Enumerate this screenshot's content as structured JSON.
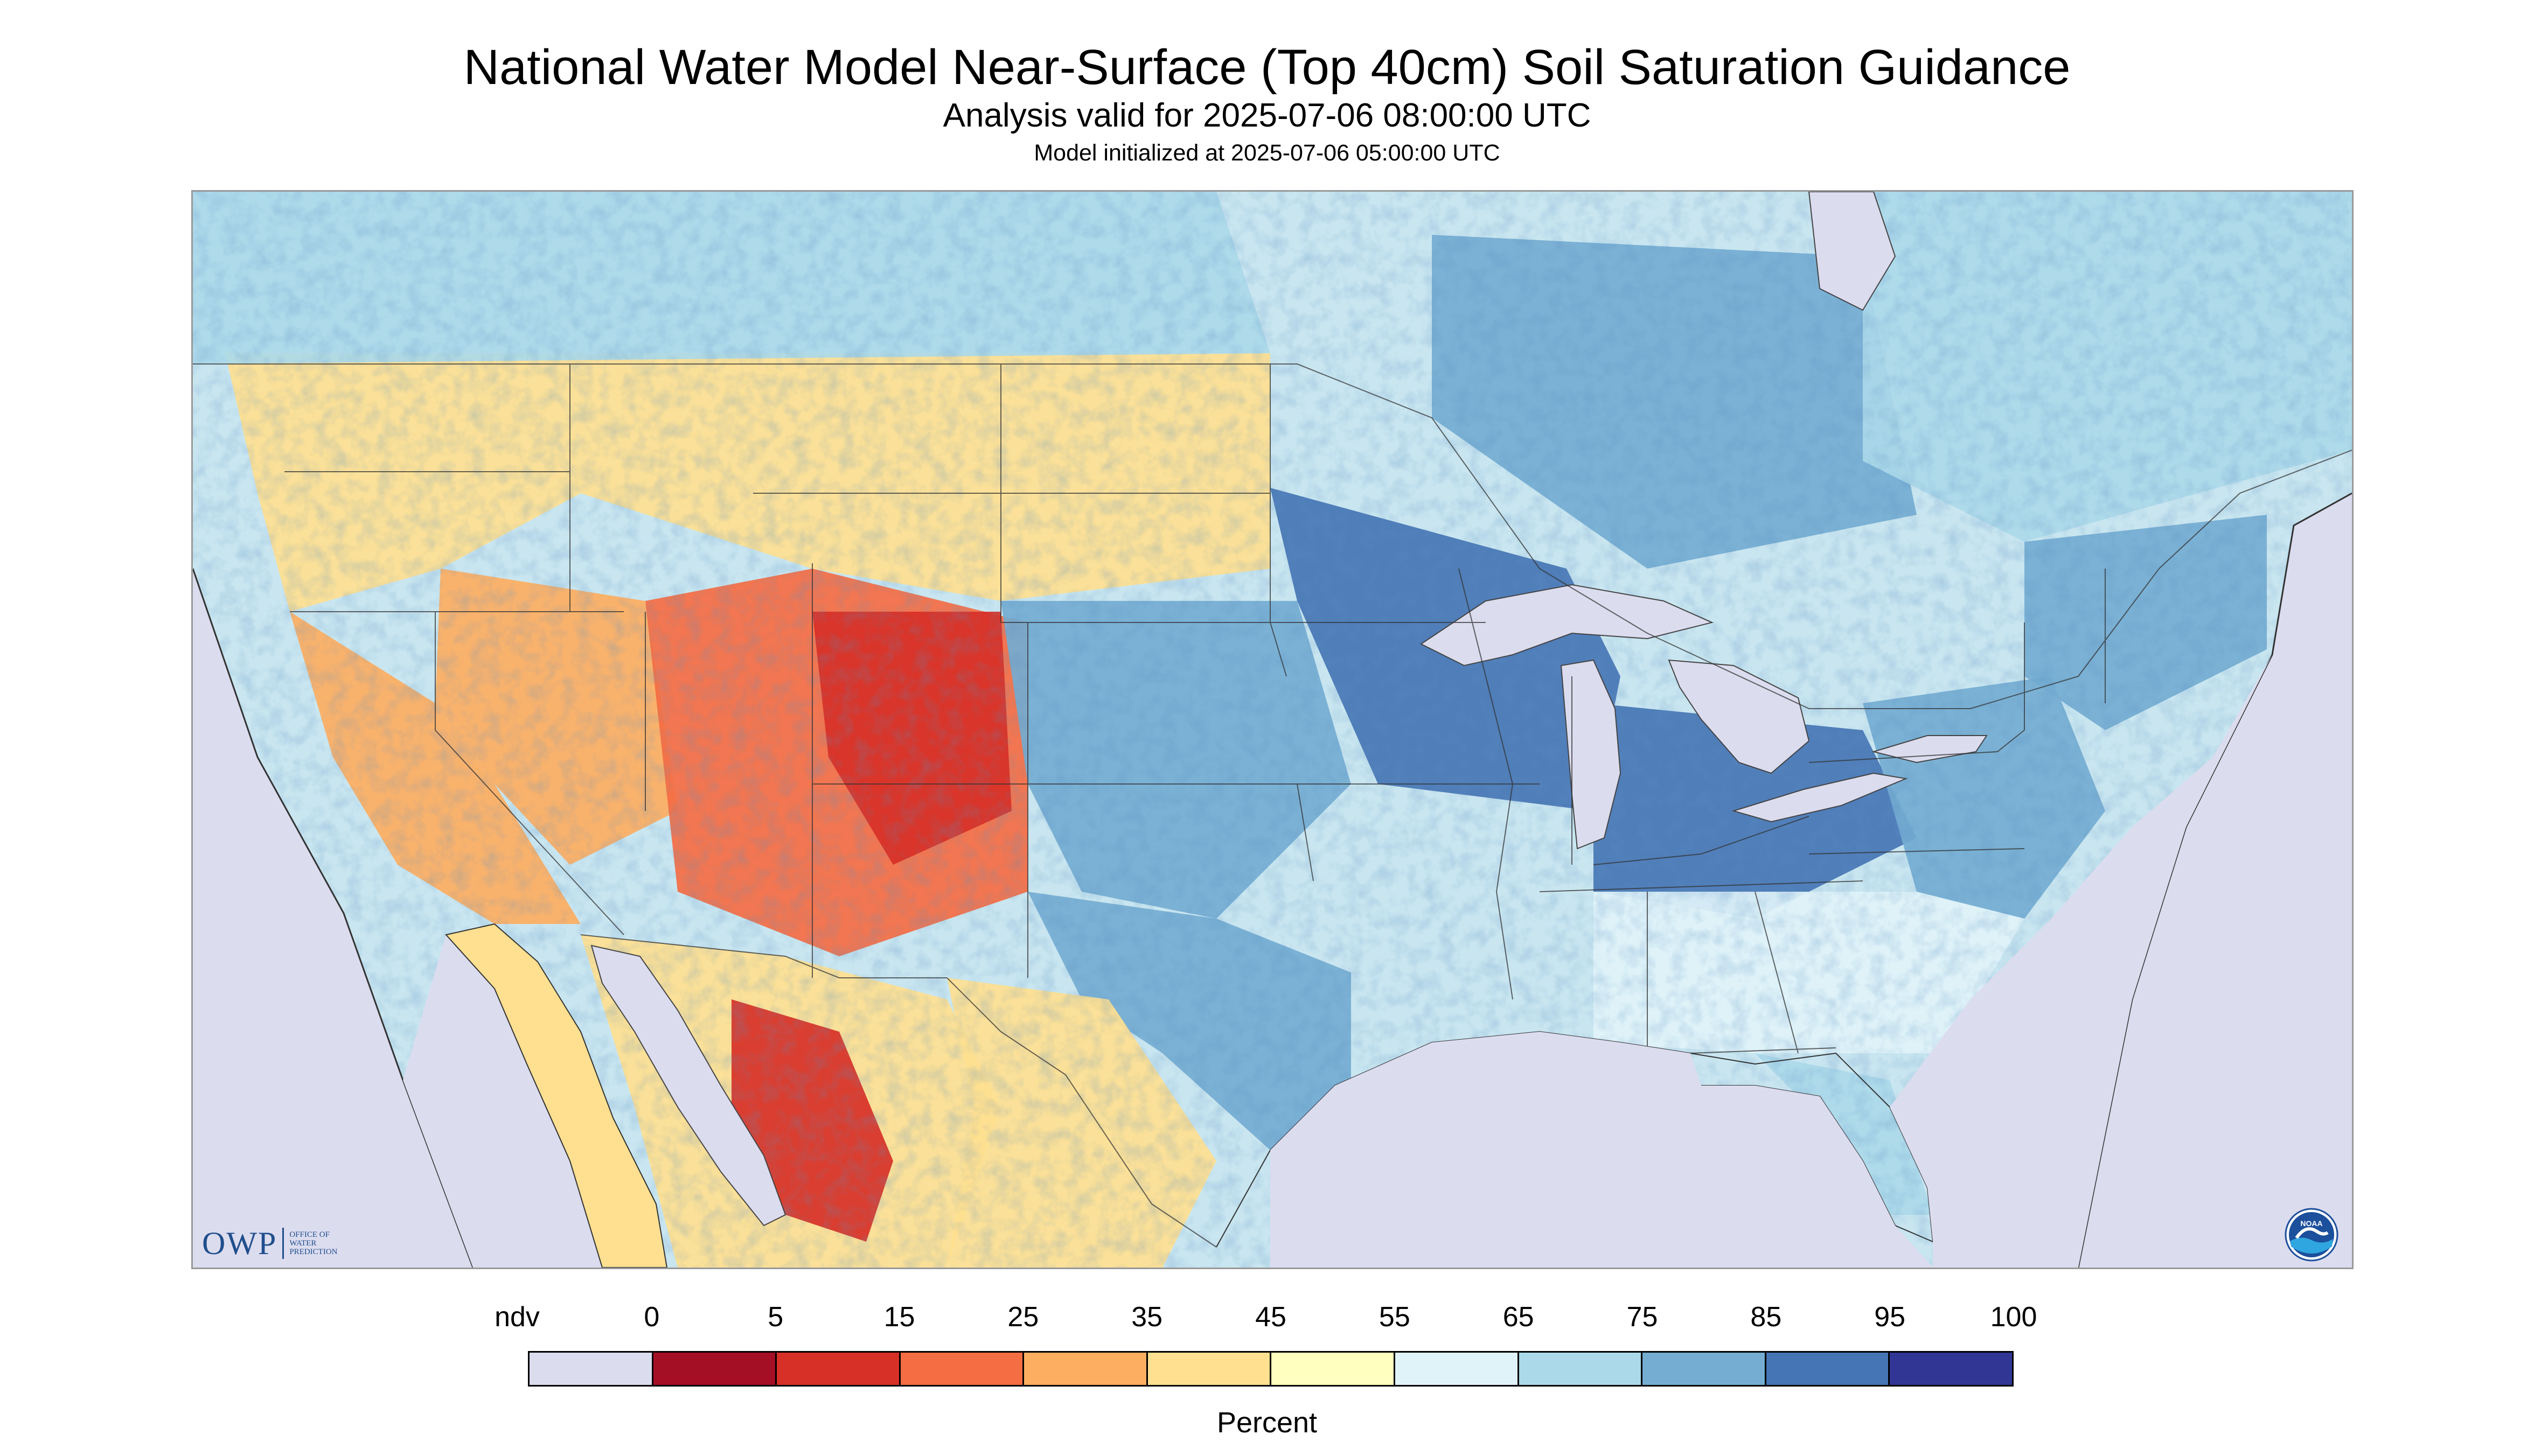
{
  "title": "National Water Model Near-Surface (Top 40cm) Soil Saturation Guidance",
  "subtitle": "Analysis valid for 2025-07-06 08:00:00 UTC",
  "init_line": "Model initialized at 2025-07-06 05:00:00 UTC",
  "legend": {
    "ticks": [
      "ndv",
      "0",
      "5",
      "15",
      "25",
      "35",
      "45",
      "55",
      "65",
      "75",
      "85",
      "95",
      "100"
    ],
    "colors": [
      "#dcdcef",
      "#a50f26",
      "#d73027",
      "#f46d43",
      "#fdae61",
      "#fee090",
      "#ffffbf",
      "#e0f3f8",
      "#abd9e9",
      "#74add1",
      "#4575b4",
      "#313695"
    ],
    "units": "Percent"
  },
  "logos": {
    "owp_letters": "OWP",
    "owp_words": [
      "OFFICE OF",
      "WATER",
      "PREDICTION"
    ],
    "noaa": "NOAA"
  },
  "map": {
    "no_data_color": "#dcdcef",
    "land_background": "#c9e6f0",
    "regions": [
      {
        "name": "pacific-northwest",
        "level": 35
      },
      {
        "name": "great-basin",
        "level": 30
      },
      {
        "name": "california",
        "level": 30
      },
      {
        "name": "four-corners",
        "level": 15
      },
      {
        "name": "colorado-rockies",
        "level": 10
      },
      {
        "name": "northern-plains",
        "level": 40
      },
      {
        "name": "central-plains",
        "level": 75
      },
      {
        "name": "texas",
        "level": 80
      },
      {
        "name": "upper-midwest",
        "level": 85
      },
      {
        "name": "ohio-valley",
        "level": 85
      },
      {
        "name": "mid-atlantic",
        "level": 75
      },
      {
        "name": "southeast",
        "level": 60
      },
      {
        "name": "florida",
        "level": 70
      },
      {
        "name": "new-england",
        "level": 75
      },
      {
        "name": "southern-canada",
        "level": 65
      },
      {
        "name": "ontario",
        "level": 80
      },
      {
        "name": "quebec",
        "level": 70
      },
      {
        "name": "mexico-west",
        "level": 35
      },
      {
        "name": "mexico-sonora",
        "level": 5
      },
      {
        "name": "mexico-northeast",
        "level": 40
      }
    ]
  }
}
